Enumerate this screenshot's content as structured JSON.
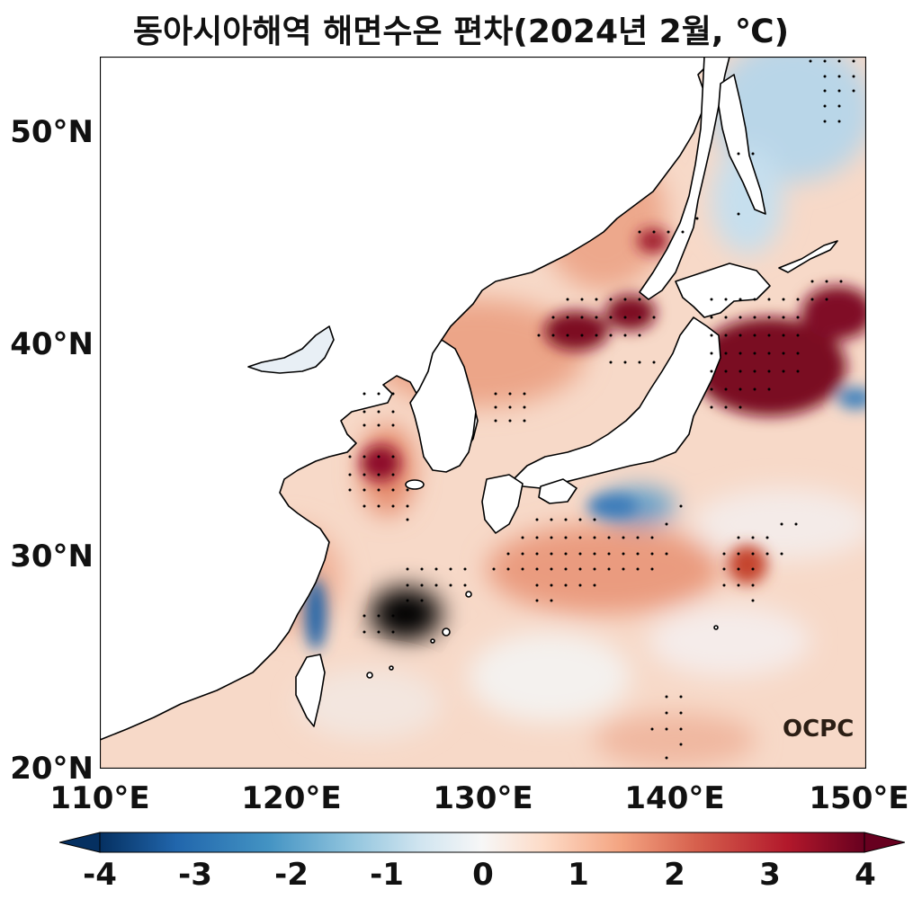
{
  "title": "동아시아해역 해면수온 편차(2024년 2월, ℃)",
  "map": {
    "lat_labels": [
      "50°N",
      "40°N",
      "30°N",
      "20°N"
    ],
    "lon_labels": [
      "110°E",
      "120°E",
      "130°E",
      "140°E",
      "150°E"
    ],
    "lat_range": [
      20,
      53.5
    ],
    "lon_range": [
      110,
      150
    ]
  },
  "colorbar": {
    "ticks": [
      "-4",
      "-3",
      "-2",
      "-1",
      "0",
      "1",
      "2",
      "3",
      "4"
    ],
    "range": [
      -4,
      4
    ],
    "colors": [
      "#053061",
      "#2166ac",
      "#4393c3",
      "#92c5de",
      "#d1e5f0",
      "#f7f7f7",
      "#fddbc7",
      "#f4a582",
      "#d6604d",
      "#b2182b",
      "#67001f"
    ]
  },
  "logo": "OCPC"
}
